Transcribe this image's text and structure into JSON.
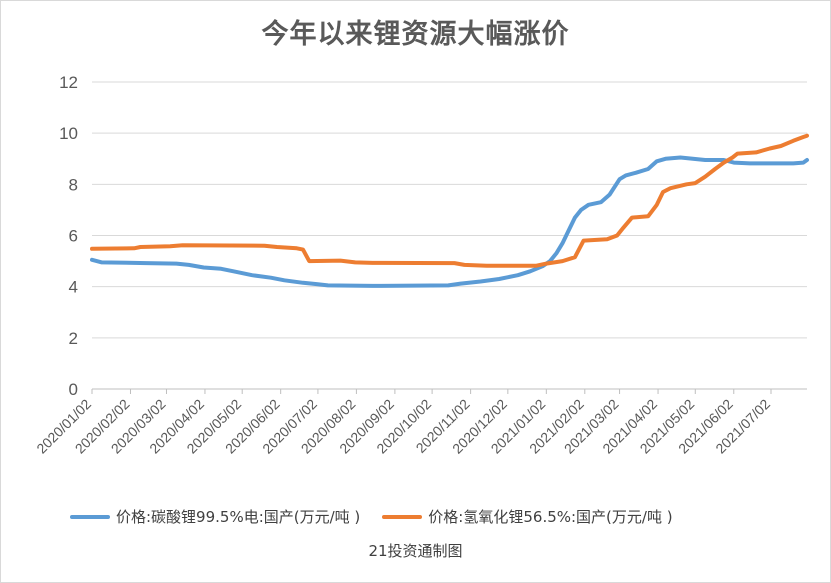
{
  "colors": {
    "lithium_carbonate": "#5b9bd5",
    "lithium_hydroxide": "#ed7d31",
    "grid": "#d9d9d9",
    "axis_text": "#595959"
  },
  "chart_data": {
    "type": "line",
    "title": "今年以来锂资源大幅涨价",
    "ylim": [
      0,
      12
    ],
    "yticks": [
      "0",
      "2",
      "4",
      "6",
      "8",
      "10",
      "12"
    ],
    "x_range": [
      "2020-01-02",
      "2021-07-31"
    ],
    "xticks": [
      "2020/01/02",
      "2020/02/02",
      "2020/03/02",
      "2020/04/02",
      "2020/05/02",
      "2020/06/02",
      "2020/07/02",
      "2020/08/02",
      "2020/09/02",
      "2020/10/02",
      "2020/11/02",
      "2020/12/02",
      "2021/01/02",
      "2021/02/02",
      "2021/03/02",
      "2021/04/02",
      "2021/05/02",
      "2021/06/02",
      "2021/07/02"
    ],
    "grid": true,
    "legend_position": "bottom",
    "series": [
      {
        "name": "价格:碳酸锂99.5%电:国产(万元/吨 )",
        "color_key": "lithium_carbonate",
        "points": [
          [
            "2020-01-02",
            5.05
          ],
          [
            "2020-01-10",
            4.95
          ],
          [
            "2020-02-15",
            4.92
          ],
          [
            "2020-03-10",
            4.9
          ],
          [
            "2020-03-20",
            4.85
          ],
          [
            "2020-04-01",
            4.75
          ],
          [
            "2020-04-15",
            4.7
          ],
          [
            "2020-04-25",
            4.6
          ],
          [
            "2020-05-10",
            4.45
          ],
          [
            "2020-05-25",
            4.35
          ],
          [
            "2020-06-05",
            4.25
          ],
          [
            "2020-06-20",
            4.15
          ],
          [
            "2020-07-01",
            4.1
          ],
          [
            "2020-07-10",
            4.05
          ],
          [
            "2020-08-15",
            4.03
          ],
          [
            "2020-10-15",
            4.05
          ],
          [
            "2020-10-25",
            4.12
          ],
          [
            "2020-11-10",
            4.2
          ],
          [
            "2020-11-25",
            4.3
          ],
          [
            "2020-12-10",
            4.45
          ],
          [
            "2020-12-20",
            4.6
          ],
          [
            "2020-12-30",
            4.8
          ],
          [
            "2021-01-05",
            5.0
          ],
          [
            "2021-01-10",
            5.3
          ],
          [
            "2021-01-15",
            5.7
          ],
          [
            "2021-01-20",
            6.2
          ],
          [
            "2021-01-25",
            6.7
          ],
          [
            "2021-01-30",
            7.0
          ],
          [
            "2021-02-05",
            7.2
          ],
          [
            "2021-02-15",
            7.3
          ],
          [
            "2021-02-22",
            7.6
          ],
          [
            "2021-03-02",
            8.2
          ],
          [
            "2021-03-07",
            8.35
          ],
          [
            "2021-03-15",
            8.45
          ],
          [
            "2021-03-25",
            8.6
          ],
          [
            "2021-04-01",
            8.9
          ],
          [
            "2021-04-08",
            9.0
          ],
          [
            "2021-04-20",
            9.05
          ],
          [
            "2021-04-30",
            9.0
          ],
          [
            "2021-05-10",
            8.95
          ],
          [
            "2021-05-25",
            8.95
          ],
          [
            "2021-06-02",
            8.85
          ],
          [
            "2021-06-15",
            8.82
          ],
          [
            "2021-07-20",
            8.82
          ],
          [
            "2021-07-28",
            8.85
          ],
          [
            "2021-07-31",
            8.95
          ]
        ]
      },
      {
        "name": "价格:氢氧化锂56.5%:国产(万元/吨 )",
        "color_key": "lithium_hydroxide",
        "points": [
          [
            "2020-01-02",
            5.48
          ],
          [
            "2020-02-05",
            5.5
          ],
          [
            "2020-02-10",
            5.55
          ],
          [
            "2020-03-05",
            5.58
          ],
          [
            "2020-03-15",
            5.62
          ],
          [
            "2020-05-20",
            5.6
          ],
          [
            "2020-05-30",
            5.55
          ],
          [
            "2020-06-15",
            5.5
          ],
          [
            "2020-06-20",
            5.45
          ],
          [
            "2020-06-25",
            5.0
          ],
          [
            "2020-07-20",
            5.02
          ],
          [
            "2020-08-01",
            4.95
          ],
          [
            "2020-08-15",
            4.93
          ],
          [
            "2020-10-20",
            4.92
          ],
          [
            "2020-10-28",
            4.85
          ],
          [
            "2020-11-15",
            4.82
          ],
          [
            "2020-12-25",
            4.82
          ],
          [
            "2021-01-02",
            4.9
          ],
          [
            "2021-01-15",
            5.0
          ],
          [
            "2021-01-25",
            5.15
          ],
          [
            "2021-02-01",
            5.8
          ],
          [
            "2021-02-20",
            5.85
          ],
          [
            "2021-02-28",
            6.0
          ],
          [
            "2021-03-05",
            6.3
          ],
          [
            "2021-03-12",
            6.7
          ],
          [
            "2021-03-25",
            6.75
          ],
          [
            "2021-04-01",
            7.2
          ],
          [
            "2021-04-06",
            7.7
          ],
          [
            "2021-04-12",
            7.85
          ],
          [
            "2021-04-25",
            8.0
          ],
          [
            "2021-05-02",
            8.05
          ],
          [
            "2021-05-10",
            8.3
          ],
          [
            "2021-05-18",
            8.6
          ],
          [
            "2021-05-25",
            8.85
          ],
          [
            "2021-06-01",
            9.05
          ],
          [
            "2021-06-05",
            9.2
          ],
          [
            "2021-06-20",
            9.25
          ],
          [
            "2021-07-01",
            9.4
          ],
          [
            "2021-07-10",
            9.5
          ],
          [
            "2021-07-20",
            9.7
          ],
          [
            "2021-07-28",
            9.85
          ],
          [
            "2021-07-31",
            9.9
          ]
        ]
      }
    ]
  },
  "source_note": "21投资通制图"
}
